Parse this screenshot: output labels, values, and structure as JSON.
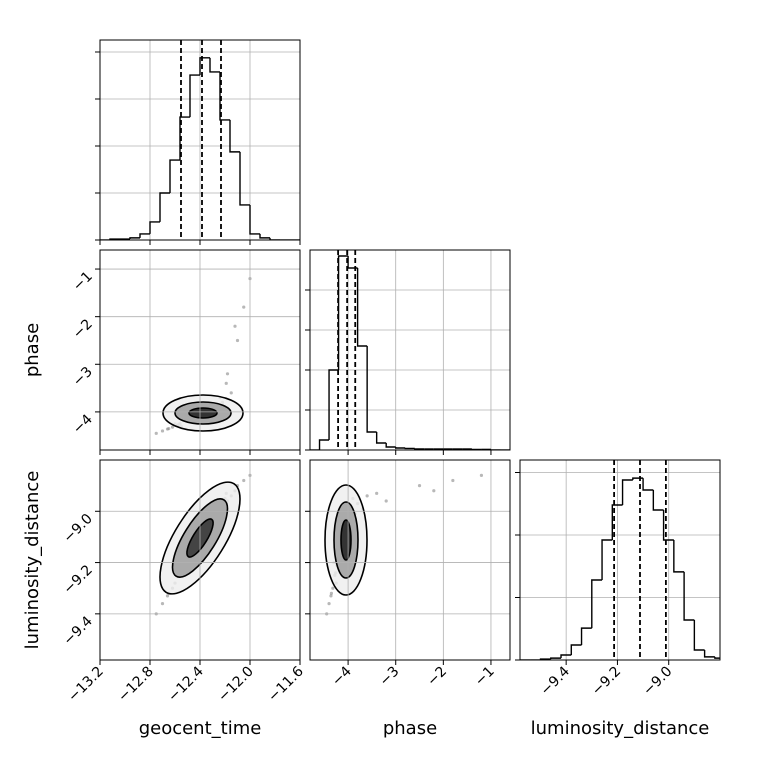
{
  "chart_data": {
    "type": "corner",
    "grid": true,
    "parameters": [
      {
        "name": "geocent_time",
        "xlim": [
          -13.2,
          -11.6
        ],
        "xticks": [
          {
            "value": -13.2,
            "label": "−13.2"
          },
          {
            "value": -12.8,
            "label": "−12.8"
          },
          {
            "value": -12.4,
            "label": "−12.4"
          },
          {
            "value": -12.0,
            "label": "−12.0"
          },
          {
            "value": -11.6,
            "label": "−11.6"
          }
        ],
        "bins": [
          -13.2,
          -13.12,
          -13.04,
          -12.96,
          -12.88,
          -12.8,
          -12.72,
          -12.64,
          -12.56,
          -12.48,
          -12.4,
          -12.32,
          -12.24,
          -12.16,
          -12.08,
          -12.0,
          -11.92,
          -11.84,
          -11.76,
          -11.68,
          -11.6
        ],
        "counts": [
          0,
          4,
          4,
          9,
          26,
          77,
          200,
          340,
          523,
          702,
          775,
          715,
          511,
          375,
          149,
          26,
          9,
          0,
          0,
          0
        ],
        "ylim": [
          0,
          851
        ],
        "yticks": [
          0,
          200,
          400,
          600,
          800
        ],
        "quantiles": [
          -12.552,
          -12.384,
          -12.232
        ],
        "samples": [
          -12.4,
          -12.52,
          -12.3,
          -12.45,
          -12.35,
          -12.6,
          -12.25,
          -12.48,
          -12.38,
          -12.55,
          -12.2,
          -12.42,
          -12.33,
          -12.65,
          -12.15,
          -12.5,
          -12.28,
          -12.44,
          -12.36,
          -12.58,
          -12.1,
          -12.47,
          -12.31,
          -12.7,
          -12.22,
          -12.53,
          -12.39,
          -12.27,
          -12.62,
          -12.05,
          -12.46,
          -12.34,
          -12.56,
          -12.18,
          -12.41,
          -12.75,
          -12.29,
          -12.51,
          -12.12,
          -12.37,
          -12.43,
          -12.24,
          -12.57,
          -12.32,
          -12.0,
          -12.49,
          -12.66,
          -12.26,
          -12.4,
          -12.19
        ]
      },
      {
        "name": "phase",
        "xlim": [
          -4.8,
          -0.6
        ],
        "xticks": [
          {
            "value": -4,
            "label": "−4"
          },
          {
            "value": -3,
            "label": "−3"
          },
          {
            "value": -2,
            "label": "−2"
          },
          {
            "value": -1,
            "label": "−1"
          }
        ],
        "bins": [
          -4.8,
          -4.6,
          -4.4,
          -4.2,
          -4.0,
          -3.8,
          -3.6,
          -3.4,
          -3.2,
          -3.0,
          -2.8,
          -2.6,
          -2.4,
          -2.2,
          -2.0,
          -1.8,
          -1.6,
          -1.4,
          -1.2,
          -1.0,
          -0.8,
          -0.6
        ],
        "counts": [
          0,
          50,
          400,
          970,
          910,
          520,
          90,
          35,
          15,
          10,
          8,
          5,
          5,
          5,
          5,
          5,
          5,
          3,
          3,
          0,
          0
        ],
        "ylim": [
          0,
          1000
        ],
        "yticks": [
          0,
          200,
          400,
          600,
          800
        ],
        "quantiles": [
          -4.21,
          -4.02,
          -3.85
        ],
        "samples": [
          -4.1,
          -4.15,
          -4.05,
          -4.2,
          -4.0,
          -4.25,
          -3.95,
          -4.12,
          -4.08,
          -4.3,
          -3.9,
          -4.18,
          -4.02,
          -4.35,
          -3.6,
          -4.1,
          -4.05,
          -4.22,
          -3.98,
          -4.28,
          -2.5,
          -4.14,
          -4.06,
          -4.4,
          -3.8,
          -4.16,
          -4.11,
          -3.85,
          -4.32,
          -1.8,
          -4.09,
          -4.03,
          -4.24,
          -3.2,
          -4.13,
          -4.45,
          -4.0,
          -4.19,
          -2.2,
          -4.07,
          -4.17,
          -3.7,
          -4.26,
          -4.04,
          -1.2,
          -4.13,
          -4.36,
          -3.92,
          -4.09,
          -3.4
        ]
      },
      {
        "name": "luminosity_distance",
        "xlim": [
          -9.58,
          -8.8
        ],
        "xticks": [
          {
            "value": -9.4,
            "label": "−9.4"
          },
          {
            "value": -9.2,
            "label": "−9.2"
          },
          {
            "value": -9.0,
            "label": "−9.0"
          }
        ],
        "bins": [
          -9.58,
          -9.54,
          -9.5,
          -9.46,
          -9.42,
          -9.38,
          -9.34,
          -9.3,
          -9.26,
          -9.22,
          -9.18,
          -9.14,
          -9.1,
          -9.06,
          -9.02,
          -8.98,
          -8.94,
          -8.9,
          -8.86,
          -8.82,
          -8.78
        ],
        "counts": [
          0,
          0,
          3,
          6,
          16,
          48,
          102,
          256,
          384,
          496,
          576,
          582,
          544,
          480,
          384,
          282,
          128,
          32,
          10,
          6
        ],
        "ylim": [
          0,
          640
        ],
        "yticks": [
          0,
          200,
          400,
          600
        ],
        "quantiles": [
          -9.213,
          -9.112,
          -9.011
        ],
        "samples": [
          -9.11,
          -9.22,
          -9.02,
          -9.16,
          -9.05,
          -9.28,
          -8.98,
          -9.12,
          -9.13,
          -9.2,
          -8.95,
          -9.08,
          -9.09,
          -9.32,
          -8.94,
          -9.18,
          -9.0,
          -9.14,
          -9.07,
          -9.25,
          -8.9,
          -9.1,
          -9.04,
          -9.36,
          -8.97,
          -9.23,
          -9.12,
          -9.01,
          -9.3,
          -8.88,
          -9.15,
          -9.06,
          -9.21,
          -8.96,
          -9.1,
          -9.4,
          -9.03,
          -9.19,
          -8.92,
          -9.08,
          -9.13,
          -8.99,
          -9.24,
          -9.05,
          -8.86,
          -9.17,
          -9.33,
          -9.0,
          -9.11,
          -8.93
        ]
      }
    ]
  }
}
